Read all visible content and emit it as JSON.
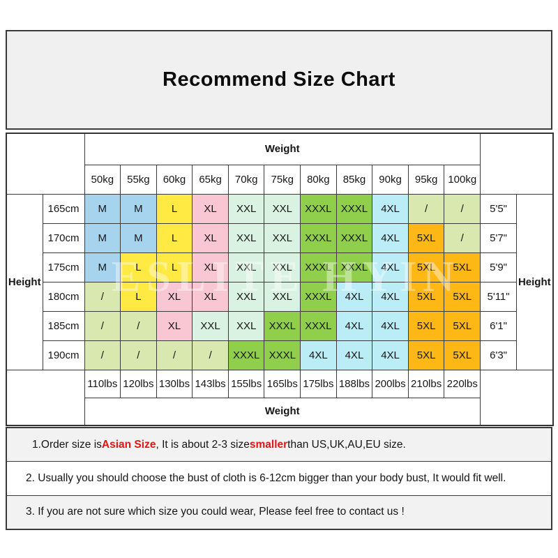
{
  "title": "Recommend Size Chart",
  "watermark": "ESLITE HYIN",
  "chart_data": {
    "type": "table",
    "title": "Recommend Size Chart",
    "weight_label_top": "Weight",
    "weight_label_bottom": "Weight",
    "height_label_left": "Height",
    "height_label_right": "Height",
    "weights_kg": [
      "50kg",
      "55kg",
      "60kg",
      "65kg",
      "70kg",
      "75kg",
      "80kg",
      "85kg",
      "90kg",
      "95kg",
      "100kg"
    ],
    "weights_lbs": [
      "110lbs",
      "120lbs",
      "130lbs",
      "143lbs",
      "155lbs",
      "165lbs",
      "175lbs",
      "188lbs",
      "200lbs",
      "210lbs",
      "220lbs"
    ],
    "rows": [
      {
        "height_cm": "165cm",
        "height_ft": "5'5\"",
        "sizes": [
          "M",
          "M",
          "L",
          "XL",
          "XXL",
          "XXL",
          "XXXL",
          "XXXL",
          "4XL",
          "/",
          "/"
        ]
      },
      {
        "height_cm": "170cm",
        "height_ft": "5'7\"",
        "sizes": [
          "M",
          "M",
          "L",
          "XL",
          "XXL",
          "XXL",
          "XXXL",
          "XXXL",
          "4XL",
          "5XL",
          "/"
        ]
      },
      {
        "height_cm": "175cm",
        "height_ft": "5'9\"",
        "sizes": [
          "M",
          "L",
          "L",
          "XL",
          "XXL",
          "XXL",
          "XXXL",
          "XXXL",
          "4XL",
          "5XL",
          "5XL"
        ]
      },
      {
        "height_cm": "180cm",
        "height_ft": "5'11\"",
        "sizes": [
          "/",
          "L",
          "XL",
          "XL",
          "XXL",
          "XXL",
          "XXXL",
          "4XL",
          "4XL",
          "5XL",
          "5XL"
        ]
      },
      {
        "height_cm": "185cm",
        "height_ft": "6'1\"",
        "sizes": [
          "/",
          "/",
          "XL",
          "XXL",
          "XXL",
          "XXXL",
          "XXXL",
          "4XL",
          "4XL",
          "5XL",
          "5XL"
        ]
      },
      {
        "height_cm": "190cm",
        "height_ft": "6'3\"",
        "sizes": [
          "/",
          "/",
          "/",
          "/",
          "XXXL",
          "XXXL",
          "4XL",
          "4XL",
          "4XL",
          "5XL",
          "5XL"
        ]
      }
    ],
    "size_colors": {
      "M": "#a6d4ee",
      "L": "#ffe943",
      "XL": "#f9c6d3",
      "XXL": "#daf2e2",
      "XXXL": "#90cf4b",
      "4XL": "#bbedf7",
      "5XL": "#fdb815",
      "/": "#d9e8ae"
    }
  },
  "notes": [
    {
      "parts": [
        {
          "text": "1.Order size is ",
          "style": "normal"
        },
        {
          "text": "Asian Size",
          "style": "red"
        },
        {
          "text": ", It is about 2-3 size ",
          "style": "normal"
        },
        {
          "text": "smaller",
          "style": "red"
        },
        {
          "text": " than US,UK,AU,EU size.",
          "style": "normal"
        }
      ]
    },
    {
      "parts": [
        {
          "text": "2. Usually you should choose the bust of cloth is 6-12cm bigger than your body bust, It would fit well.",
          "style": "normal"
        }
      ]
    },
    {
      "parts": [
        {
          "text": "3. If you are not sure which size you could wear, Please feel free to contact us !",
          "style": "normal"
        }
      ]
    }
  ],
  "colors": {
    "title_bg": "#f0f0f0",
    "border": "#3a3a3a",
    "note_alt_bg": "#f2f2f2",
    "accent_red": "#e51414",
    "size_m_blue": "#a6d4ee",
    "size_l_yellow": "#ffe943",
    "size_xl_pink": "#f9c6d3",
    "size_xxl_mint": "#daf2e2",
    "size_xxxl_green": "#90cf4b",
    "size_4xl_cyan": "#bbedf7",
    "size_5xl_orange": "#fdb815",
    "size_none_olive": "#d9e8ae"
  }
}
